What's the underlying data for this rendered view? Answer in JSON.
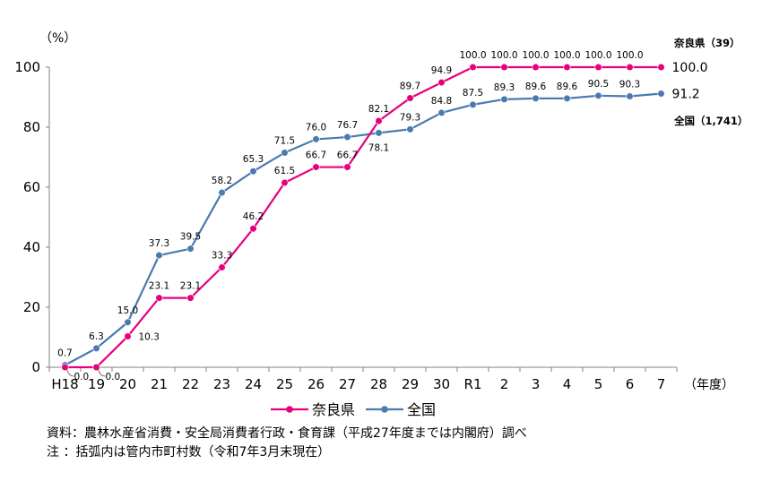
{
  "chart_data": {
    "type": "line",
    "title": "",
    "y_unit": "（%）",
    "x_unit": "（年度）",
    "ylim": [
      0,
      100
    ],
    "yticks": [
      0,
      20,
      40,
      60,
      80,
      100
    ],
    "categories": [
      "H18",
      "19",
      "20",
      "21",
      "22",
      "23",
      "24",
      "25",
      "26",
      "27",
      "28",
      "29",
      "30",
      "R1",
      "2",
      "3",
      "4",
      "5",
      "6",
      "7"
    ],
    "grid": false,
    "legend_position": "bottom-left",
    "series": [
      {
        "name": "奈良県",
        "color": "#e6007e",
        "values": [
          0.0,
          0.0,
          10.3,
          23.1,
          23.1,
          33.3,
          46.2,
          61.5,
          66.7,
          66.7,
          82.1,
          89.7,
          94.9,
          100.0,
          100.0,
          100.0,
          100.0,
          100.0,
          100.0,
          100.0
        ],
        "data_labels": [
          "0.0",
          "0.0",
          "10.3",
          "23.1",
          "23.1",
          "33.3",
          "46.2",
          "61.5",
          "66.7",
          "66.7",
          "82.1",
          "89.7",
          "94.9",
          "100.0",
          "100.0",
          "100.0",
          "100.0",
          "100.0",
          "100.0",
          "100.0"
        ],
        "end_label": "100.0",
        "end_note": "奈良県（39）"
      },
      {
        "name": "全国",
        "color": "#4a7ab0",
        "values": [
          0.7,
          6.3,
          15.0,
          37.3,
          39.5,
          58.2,
          65.3,
          71.5,
          76.0,
          76.7,
          78.1,
          79.3,
          84.8,
          87.5,
          89.3,
          89.6,
          89.6,
          90.5,
          90.3,
          91.2
        ],
        "data_labels": [
          "0.7",
          "6.3",
          "15.0",
          "37.3",
          "39.5",
          "58.2",
          "65.3",
          "71.5",
          "76.0",
          "76.7",
          "78.1",
          "79.3",
          "84.8",
          "87.5",
          "89.3",
          "89.6",
          "89.6",
          "90.5",
          "90.3",
          "91.2"
        ],
        "end_label": "91.2",
        "end_note": "全国（1,741）"
      }
    ]
  },
  "notes": {
    "source": "資料：農林水産省消費・安全局消費者行政・食育課（平成27年度までは内閣府）調べ",
    "note": " 注 ：括弧内は管内市町村数（令和7年3月末現在）"
  }
}
